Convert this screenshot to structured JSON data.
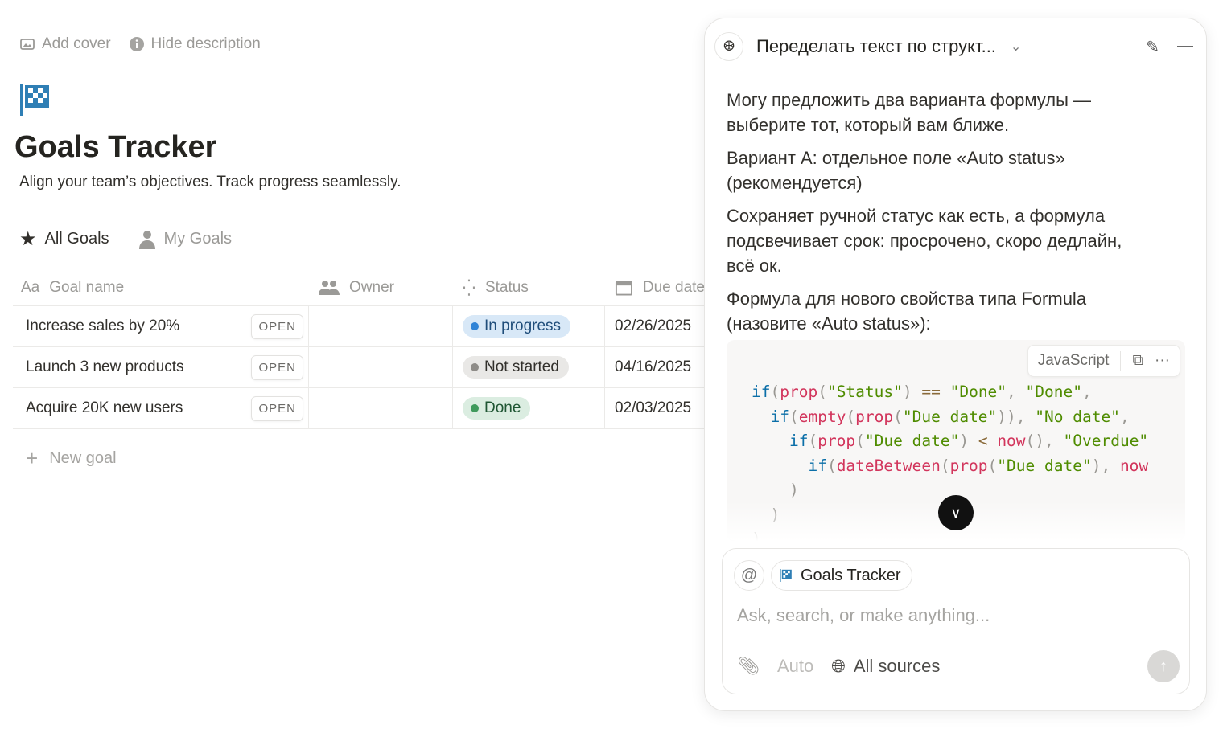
{
  "page": {
    "add_cover": "Add cover",
    "hide_description": "Hide description",
    "title": "Goals Tracker",
    "description": "Align your team’s objectives. Track progress seamlessly.",
    "views": [
      {
        "label": "All Goals",
        "icon": "star-icon",
        "active": true
      },
      {
        "label": "My Goals",
        "icon": "person-icon",
        "active": false
      }
    ]
  },
  "table": {
    "headers": [
      "Goal name",
      "Owner",
      "Status",
      "Due date"
    ],
    "open_label": "OPEN",
    "rows": [
      {
        "name": "Increase sales by 20%",
        "owner": "",
        "status": "In progress",
        "due": "02/26/2025"
      },
      {
        "name": "Launch 3 new products",
        "owner": "",
        "status": "Not started",
        "due": "04/16/2025"
      },
      {
        "name": "Acquire 20K new users",
        "owner": "",
        "status": "Done",
        "due": "02/03/2025"
      }
    ],
    "new_goal": "New goal",
    "status_colors": {
      "In progress": {
        "bg": "#d8e8f7",
        "dot": "#2f83d6",
        "fg": "#1f4d7a"
      },
      "Not started": {
        "bg": "#e9e8e6",
        "dot": "#8e8c88",
        "fg": "#32302c"
      },
      "Done": {
        "bg": "#dbede1",
        "dot": "#3f9a5c",
        "fg": "#1f5633"
      }
    }
  },
  "assistant": {
    "title": "Переделать текст по структ...",
    "messages": [
      "Могу предложить два варианта формулы — выберите тот, который вам ближе.",
      "Вариант A: отдельное поле «Auto status» (рекомендуется)",
      "Сохраняет ручной статус как есть, а формула подсвечивает срок: просрочено, скоро дедлайн, всё ок.",
      "Формула для нового свойства типа Formula (назовите «Auto status»):"
    ],
    "code_language": "JavaScript",
    "code_lines": [
      [
        [
          "kw",
          "if"
        ],
        [
          "p",
          "("
        ],
        [
          "fn",
          "prop"
        ],
        [
          "p",
          "("
        ],
        [
          "str",
          "\"Status\""
        ],
        [
          "p",
          ") "
        ],
        [
          "op",
          "=="
        ],
        [
          "p",
          " "
        ],
        [
          "str",
          "\"Done\""
        ],
        [
          "p",
          ", "
        ],
        [
          "str",
          "\"Done\""
        ],
        [
          "p",
          ","
        ]
      ],
      [
        [
          "p",
          "  "
        ],
        [
          "kw",
          "if"
        ],
        [
          "p",
          "("
        ],
        [
          "fn",
          "empty"
        ],
        [
          "p",
          "("
        ],
        [
          "fn",
          "prop"
        ],
        [
          "p",
          "("
        ],
        [
          "str",
          "\"Due date\""
        ],
        [
          "p",
          ")), "
        ],
        [
          "str",
          "\"No date\""
        ],
        [
          "p",
          ","
        ]
      ],
      [
        [
          "p",
          "    "
        ],
        [
          "kw",
          "if"
        ],
        [
          "p",
          "("
        ],
        [
          "fn",
          "prop"
        ],
        [
          "p",
          "("
        ],
        [
          "str",
          "\"Due date\""
        ],
        [
          "p",
          ") "
        ],
        [
          "op",
          "<"
        ],
        [
          "p",
          " "
        ],
        [
          "fn",
          "now"
        ],
        [
          "p",
          "(), "
        ],
        [
          "str",
          "\"Overdue\""
        ]
      ],
      [
        [
          "p",
          "      "
        ],
        [
          "kw",
          "if"
        ],
        [
          "p",
          "("
        ],
        [
          "fn",
          "dateBetween"
        ],
        [
          "p",
          "("
        ],
        [
          "fn",
          "prop"
        ],
        [
          "p",
          "("
        ],
        [
          "str",
          "\"Due date\""
        ],
        [
          "p",
          "), "
        ],
        [
          "fn",
          "now"
        ]
      ],
      [
        [
          "p",
          "    )"
        ]
      ],
      [
        [
          "p",
          "  )"
        ]
      ],
      [
        [
          "p",
          ")"
        ]
      ]
    ],
    "context_chip": "Goals Tracker",
    "input_placeholder": "Ask, search, or make anything...",
    "mode": "Auto",
    "sources": "All sources"
  }
}
